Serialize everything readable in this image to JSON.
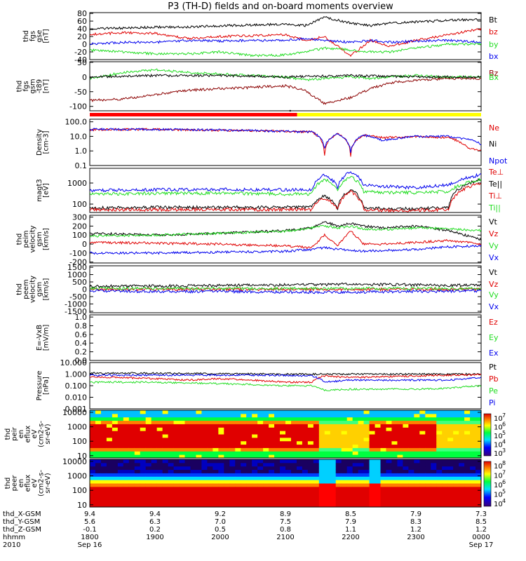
{
  "title": "P3 (TH-D) fields and on-board moments overview",
  "colors": {
    "black": "#000000",
    "red": "#e00000",
    "green": "#22dd22",
    "blue": "#0000ee",
    "darkred": "#8b0000",
    "bar_red": "#ff0000",
    "bar_yellow": "#ffff00"
  },
  "x_axis": {
    "tick_labels": [
      "1800",
      "1900",
      "2000",
      "2100",
      "2200",
      "2300",
      "0000"
    ],
    "x_range": [
      0,
      6
    ],
    "row_labels": [
      "thd_X-GSM",
      "thd_Y-GSM",
      "thd_Z-GSM",
      "hhmm",
      "2010"
    ],
    "X_GSM": [
      "9.4",
      "9.4",
      "9.2",
      "8.9",
      "8.5",
      "7.9",
      "7.3"
    ],
    "Y_GSM": [
      "5.6",
      "6.3",
      "7.0",
      "7.5",
      "7.9",
      "8.3",
      "8.5"
    ],
    "Z_GSM": [
      "-0.1",
      "0.2",
      "0.5",
      "0.8",
      "1.1",
      "1.2",
      "1.2"
    ],
    "date_start": "Sep 16",
    "date_end": "Sep 17"
  },
  "mode_bar": {
    "switch_hour": 3.18,
    "left_color": "red",
    "right_color": "yellow"
  },
  "panels": [
    {
      "id": "fgs",
      "ylabel": [
        "thd",
        "fgs",
        "gse",
        "[nT]"
      ],
      "ticks": [
        "80",
        "60",
        "40",
        "20",
        "0",
        "-20",
        "-40"
      ],
      "legend": [
        {
          "text": "Bt",
          "color": "black"
        },
        {
          "text": "bz",
          "color": "red"
        },
        {
          "text": "by",
          "color": "green"
        },
        {
          "text": "bx",
          "color": "blue"
        }
      ]
    },
    {
      "id": "t89",
      "ylabel": [
        "thd",
        "fgs",
        "gsm",
        "-t89",
        "[nT]"
      ],
      "ticks": [
        "50",
        "0",
        "-50",
        "-100"
      ],
      "legend": [
        {
          "text": "Bz",
          "color": "darkred"
        },
        {
          "text": "Bx",
          "color": "green"
        }
      ]
    },
    {
      "id": "density",
      "ylabel": [
        "Density",
        "[cm-3]"
      ],
      "ticks": [
        "100.0",
        "10.0",
        "1.0",
        "0.1"
      ],
      "legend": [
        {
          "text": "Ne",
          "color": "red"
        },
        {
          "text": "Ni",
          "color": "black"
        },
        {
          "text": "Npot",
          "color": "blue"
        }
      ]
    },
    {
      "id": "temp",
      "ylabel": [
        "magt3",
        "[eV]"
      ],
      "ticks": [
        "1000",
        "100"
      ],
      "legend": [
        {
          "text": "Te⊥",
          "color": "red"
        },
        {
          "text": "Te||",
          "color": "black"
        },
        {
          "text": "Ti⊥",
          "color": "red"
        },
        {
          "text": "Ti||",
          "color": "green"
        }
      ]
    },
    {
      "id": "peim",
      "ylabel": [
        "thd",
        "peim",
        "velocity",
        "gsm",
        "[km/s]"
      ],
      "ticks": [
        "300",
        "200",
        "100",
        "0",
        "-100",
        "-200"
      ],
      "legend": [
        {
          "text": "Vt",
          "color": "black"
        },
        {
          "text": "Vz",
          "color": "red"
        },
        {
          "text": "Vy",
          "color": "green"
        },
        {
          "text": "Vx",
          "color": "blue"
        }
      ]
    },
    {
      "id": "peem",
      "ylabel": [
        "thd",
        "peem",
        "velocity",
        "gsm",
        "[km/s]"
      ],
      "ticks": [
        "1500",
        "1000",
        "500",
        "0",
        "-500",
        "-1000",
        "-1500"
      ],
      "legend": [
        {
          "text": "Vt",
          "color": "black"
        },
        {
          "text": "Vz",
          "color": "red"
        },
        {
          "text": "Vy",
          "color": "green"
        },
        {
          "text": "Vx",
          "color": "blue"
        }
      ]
    },
    {
      "id": "efield",
      "ylabel": [
        "E=-VxB",
        "[mV/m]"
      ],
      "ticks": [
        "1.0",
        "0.8",
        "0.6",
        "0.4",
        "0.2",
        "0.0"
      ],
      "legend": [
        {
          "text": "Ez",
          "color": "red"
        },
        {
          "text": "Ey",
          "color": "green"
        },
        {
          "text": "Ex",
          "color": "blue"
        }
      ]
    },
    {
      "id": "pressure",
      "ylabel": [
        "Pressure",
        "[nPa]"
      ],
      "ticks": [
        "10.000",
        "1.000",
        "0.100",
        "0.010",
        "0.001"
      ],
      "legend": [
        {
          "text": "Pt",
          "color": "black"
        },
        {
          "text": "Pb",
          "color": "red"
        },
        {
          "text": "Pe",
          "color": "green"
        },
        {
          "text": "Pi",
          "color": "blue"
        }
      ]
    },
    {
      "id": "peir",
      "ylabel": [
        "thd",
        "peir",
        "en",
        "eflux",
        "eV",
        "(cm2-s-",
        "sr-eV)"
      ],
      "ticks": [
        "10000",
        "1000",
        "100",
        "10"
      ],
      "colorbar_labels": [
        "7",
        "6",
        "5",
        "4",
        "3"
      ]
    },
    {
      "id": "peer",
      "ylabel": [
        "thd",
        "peer",
        "en",
        "eflux",
        "eV",
        "(cm2-s-",
        "sr-eV)"
      ],
      "ticks": [
        "10000",
        "1000",
        "100",
        "10"
      ],
      "colorbar_labels": [
        "8",
        "7",
        "6",
        "5",
        "4"
      ]
    }
  ],
  "chart_data": {
    "type": "line",
    "title": "P3 (TH-D) fields and on-board moments overview",
    "x_unit": "hours since 2010 Sep 16 18:00 UT",
    "series": [
      {
        "panel": "fgs",
        "name": "Bt",
        "color": "black",
        "x": [
          0,
          0.5,
          1,
          1.5,
          2,
          2.5,
          3,
          3.3,
          3.6,
          4,
          4.3,
          4.6,
          5,
          5.5,
          6
        ],
        "values": [
          40,
          42,
          44,
          45,
          48,
          50,
          52,
          48,
          70,
          55,
          48,
          55,
          58,
          62,
          65
        ]
      },
      {
        "panel": "fgs",
        "name": "bz",
        "color": "red",
        "x": [
          0,
          0.5,
          1,
          1.5,
          2,
          2.5,
          3,
          3.3,
          3.6,
          4,
          4.3,
          4.6,
          5,
          5.5,
          6
        ],
        "values": [
          25,
          30,
          28,
          15,
          20,
          22,
          25,
          10,
          20,
          -30,
          10,
          -5,
          10,
          25,
          40
        ]
      },
      {
        "panel": "fgs",
        "name": "by",
        "color": "green",
        "x": [
          0,
          0.5,
          1,
          1.5,
          2,
          2.5,
          3,
          3.3,
          3.6,
          4,
          4.3,
          4.6,
          5,
          5.5,
          6
        ],
        "values": [
          -15,
          -20,
          -25,
          -25,
          -20,
          -30,
          -28,
          -20,
          -10,
          -15,
          -20,
          -20,
          -10,
          0,
          0
        ]
      },
      {
        "panel": "fgs",
        "name": "bx",
        "color": "blue",
        "x": [
          0,
          0.5,
          1,
          1.5,
          2,
          2.5,
          3,
          3.3,
          3.6,
          4,
          4.3,
          4.6,
          5,
          5.5,
          6
        ],
        "values": [
          0,
          5,
          5,
          10,
          8,
          10,
          10,
          15,
          10,
          5,
          10,
          5,
          8,
          10,
          5
        ]
      },
      {
        "panel": "t89",
        "name": "Bz",
        "color": "darkred",
        "x": [
          0,
          0.5,
          1,
          1.5,
          2,
          2.5,
          3,
          3.3,
          3.6,
          4,
          4.3,
          4.6,
          5,
          5.5,
          6
        ],
        "values": [
          -80,
          -75,
          -60,
          -45,
          -40,
          -35,
          -30,
          -45,
          -90,
          -70,
          -40,
          -20,
          -10,
          -5,
          -5
        ]
      },
      {
        "panel": "t89",
        "name": "Bx",
        "color": "green",
        "x": [
          0,
          0.5,
          1,
          1.5,
          2,
          2.5,
          3,
          3.3,
          3.6,
          4,
          4.3,
          4.6,
          5,
          5.5,
          6
        ],
        "values": [
          -5,
          15,
          25,
          15,
          10,
          5,
          0,
          -10,
          -5,
          0,
          -5,
          0,
          5,
          0,
          0
        ]
      },
      {
        "panel": "t89",
        "name": "black",
        "color": "black",
        "x": [
          0,
          1,
          2,
          3,
          4,
          5,
          6
        ],
        "values": [
          0,
          5,
          5,
          0,
          5,
          0,
          0
        ]
      },
      {
        "panel": "density",
        "name": "Ne",
        "color": "red",
        "x": [
          0,
          0.5,
          1,
          1.5,
          2,
          2.5,
          3,
          3.4,
          3.6,
          3.8,
          4,
          4.2,
          4.5,
          5,
          5.5,
          5.8,
          6
        ],
        "values": [
          28,
          30,
          30,
          28,
          26,
          25,
          22,
          20,
          0.5,
          15,
          0.4,
          12,
          8,
          10,
          8,
          1.5,
          1
        ]
      },
      {
        "panel": "density",
        "name": "Npot",
        "color": "blue",
        "x": [
          0,
          1,
          2,
          3,
          3.4,
          3.6,
          3.8,
          4,
          4.2,
          4.5,
          5,
          5.5,
          5.8,
          6
        ],
        "values": [
          30,
          30,
          27,
          22,
          20,
          1.5,
          15,
          0.8,
          12,
          5,
          10,
          10,
          6,
          3
        ]
      },
      {
        "panel": "temp",
        "name": "Te||",
        "color": "black",
        "x": [
          0,
          1,
          2,
          3,
          3.4,
          3.6,
          3.8,
          4,
          4.2,
          4.5,
          5,
          5.5,
          6
        ],
        "values": [
          65,
          70,
          70,
          70,
          70,
          250,
          60,
          500,
          70,
          60,
          60,
          70,
          1500
        ]
      },
      {
        "panel": "temp",
        "name": "Te⊥",
        "color": "red",
        "x": [
          0,
          1,
          2,
          3,
          3.4,
          3.6,
          3.8,
          4,
          4.2,
          4.5,
          5,
          5.5,
          6
        ],
        "values": [
          55,
          55,
          55,
          55,
          55,
          200,
          55,
          400,
          55,
          50,
          50,
          55,
          1000
        ]
      },
      {
        "panel": "temp",
        "name": "Ti⊥",
        "color": "blue",
        "x": [
          0,
          1,
          2,
          3,
          3.4,
          3.6,
          3.8,
          4,
          4.2,
          4.5,
          5,
          5.5,
          6
        ],
        "values": [
          450,
          480,
          500,
          480,
          480,
          2500,
          600,
          3500,
          800,
          700,
          600,
          800,
          2500
        ]
      },
      {
        "panel": "temp",
        "name": "Ti||",
        "color": "green",
        "x": [
          0,
          1,
          2,
          3,
          3.4,
          3.6,
          3.8,
          4,
          4.2,
          4.5,
          5,
          5.5,
          6
        ],
        "values": [
          300,
          320,
          330,
          300,
          300,
          1500,
          400,
          2000,
          400,
          350,
          350,
          400,
          1500
        ]
      },
      {
        "panel": "peim",
        "name": "Vt",
        "color": "black",
        "x": [
          0,
          1,
          2,
          3,
          3.4,
          3.6,
          3.8,
          4,
          4.2,
          4.5,
          5,
          5.5,
          6
        ],
        "values": [
          120,
          100,
          120,
          150,
          180,
          250,
          200,
          230,
          200,
          180,
          200,
          150,
          50
        ]
      },
      {
        "panel": "peim",
        "name": "Vz",
        "color": "red",
        "x": [
          0,
          1,
          2,
          3,
          3.4,
          3.6,
          3.8,
          4,
          4.2,
          4.5,
          5,
          5.5,
          6
        ],
        "values": [
          20,
          10,
          0,
          -20,
          -40,
          100,
          -10,
          150,
          0,
          0,
          20,
          40,
          0
        ]
      },
      {
        "panel": "peim",
        "name": "Vy",
        "color": "green",
        "x": [
          0,
          1,
          2,
          3,
          3.4,
          3.6,
          3.8,
          4,
          4.2,
          4.5,
          5,
          5.5,
          6
        ],
        "values": [
          90,
          100,
          120,
          140,
          180,
          200,
          180,
          200,
          170,
          160,
          180,
          170,
          150
        ]
      },
      {
        "panel": "peim",
        "name": "Vx",
        "color": "blue",
        "x": [
          0,
          1,
          2,
          3,
          3.4,
          3.6,
          3.8,
          4,
          4.2,
          4.5,
          5,
          5.5,
          6
        ],
        "values": [
          -100,
          -100,
          -90,
          -80,
          -60,
          -40,
          -60,
          -70,
          -80,
          -70,
          -60,
          -30,
          -20
        ]
      },
      {
        "panel": "peem",
        "name": "Vt",
        "color": "black",
        "x": [
          0,
          1,
          2,
          3,
          4,
          5,
          6
        ],
        "values": [
          200,
          220,
          250,
          300,
          350,
          300,
          250
        ]
      },
      {
        "panel": "peem",
        "name": "Vz",
        "color": "red",
        "x": [
          0,
          1,
          2,
          3,
          4,
          5,
          6
        ],
        "values": [
          0,
          0,
          0,
          0,
          0,
          0,
          0
        ]
      },
      {
        "panel": "peem",
        "name": "Vy",
        "color": "green",
        "x": [
          0,
          1,
          2,
          3,
          4,
          5,
          6
        ],
        "values": [
          50,
          50,
          50,
          50,
          50,
          50,
          50
        ]
      },
      {
        "panel": "peem",
        "name": "Vx",
        "color": "blue",
        "x": [
          0,
          1,
          2,
          3,
          4,
          5,
          6
        ],
        "values": [
          -100,
          -150,
          -150,
          -200,
          -200,
          -150,
          -100
        ]
      },
      {
        "panel": "pressure",
        "name": "Pt",
        "color": "black",
        "x": [
          0,
          1,
          2,
          3,
          4,
          5,
          6
        ],
        "values": [
          1.2,
          1.2,
          1.1,
          1.0,
          1.0,
          1.0,
          1.0
        ]
      },
      {
        "panel": "pressure",
        "name": "Pb",
        "color": "red",
        "x": [
          0,
          0.5,
          1,
          1.5,
          2,
          2.5,
          3,
          3.4,
          3.6,
          4,
          4.5,
          5,
          5.5,
          6
        ],
        "values": [
          0.6,
          0.5,
          0.4,
          0.3,
          0.4,
          0.3,
          0.2,
          0.2,
          0.7,
          0.5,
          0.6,
          0.7,
          0.8,
          0.9
        ]
      },
      {
        "panel": "pressure",
        "name": "Pe",
        "color": "green",
        "x": [
          0,
          1,
          2,
          3,
          3.4,
          3.6,
          4,
          4.5,
          5,
          5.5,
          6
        ],
        "values": [
          0.2,
          0.2,
          0.15,
          0.1,
          0.1,
          0.04,
          0.05,
          0.05,
          0.05,
          0.06,
          0.1
        ]
      },
      {
        "panel": "pressure",
        "name": "Pi",
        "color": "blue",
        "x": [
          0,
          1,
          2,
          3,
          3.4,
          3.6,
          4,
          4.5,
          5,
          5.5,
          6
        ],
        "values": [
          0.8,
          0.8,
          0.8,
          0.8,
          0.7,
          0.2,
          0.3,
          0.3,
          0.3,
          0.3,
          0.5
        ]
      }
    ]
  }
}
